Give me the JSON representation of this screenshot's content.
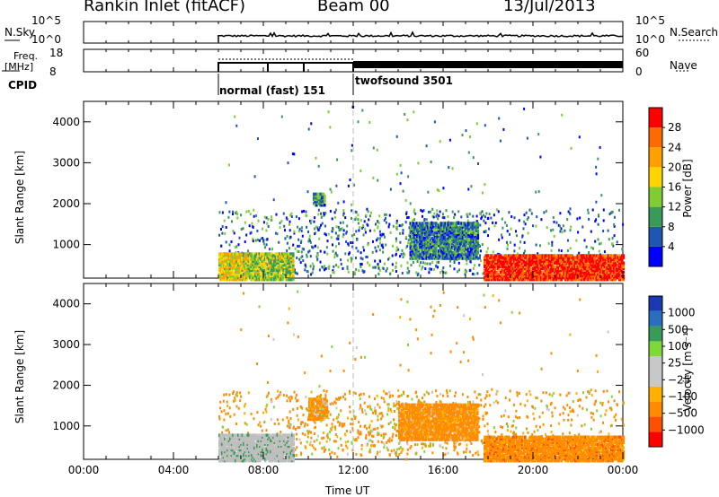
{
  "header": {
    "station": "Rankin Inlet (fitACF)",
    "beam": "Beam 00",
    "date": "13/Jul/2013"
  },
  "panels": {
    "nsky": {
      "label": "N.Sky",
      "tick_top": "10^5",
      "tick_bottom": "10^0",
      "right_label": "N.Search",
      "right_top": "10^5",
      "right_bottom": "10^0"
    },
    "freq": {
      "label_line1": "Freq.",
      "label_line2": "[MHz]",
      "tick_top": "18",
      "tick_bottom": "8",
      "right_label": "Nave",
      "right_top": "60",
      "right_bottom": "0"
    },
    "cpid": {
      "label": "CPID",
      "mode1": "normal (fast) 151",
      "mode2": "twofsound 3501"
    }
  },
  "colors": {
    "power_scale": [
      "#0000ff",
      "#1f56b4",
      "#3a9a5a",
      "#7fcc33",
      "#ffd400",
      "#ffa000",
      "#ff6a00",
      "#ff0000"
    ],
    "velocity_scale": [
      "#ff0000",
      "#ff5000",
      "#ff8c00",
      "#ffb000",
      "#c8c8c8",
      "#c8c8c8",
      "#7fd83a",
      "#3a9a5a",
      "#2a6ec0",
      "#1a3ab4"
    ],
    "ground_scatter": "#bebebe"
  },
  "power_colorbar": {
    "label": "Power [dB]",
    "ticks": [
      "28",
      "24",
      "20",
      "16",
      "12",
      "8",
      "4"
    ]
  },
  "velocity_colorbar": {
    "label": "Velocity [m s⁻¹]",
    "ticks": [
      "1000",
      "500",
      "100",
      "25",
      "−25",
      "−100",
      "−500",
      "−1000"
    ]
  },
  "chart_data": [
    {
      "type": "heatmap",
      "name": "power",
      "ylabel": "Slant Range [km]",
      "xlabel": "",
      "x_ticks": [
        "00:00",
        "04:00",
        "08:00",
        "12:00",
        "16:00",
        "20:00",
        "00:00"
      ],
      "y_ticks": [
        "1000",
        "2000",
        "3000",
        "4000"
      ],
      "xlim_hours": [
        0,
        24
      ],
      "ylim_km": [
        180,
        4500
      ],
      "data_start_hour": 6,
      "regions": [
        {
          "t0": 6.0,
          "t1": 7.3,
          "r0": 180,
          "r1": 850,
          "level": 0.55
        },
        {
          "t0": 7.3,
          "t1": 9.3,
          "r0": 180,
          "r1": 850,
          "level": 0.45
        },
        {
          "t0": 17.8,
          "t1": 24,
          "r0": 180,
          "r1": 800,
          "level": 0.92
        },
        {
          "t0": 14.5,
          "t1": 17.5,
          "r0": 700,
          "r1": 1600,
          "level": 0.25
        },
        {
          "t0": 10.2,
          "t1": 10.7,
          "r0": 2000,
          "r1": 2300,
          "level": 0.3
        }
      ]
    },
    {
      "type": "heatmap",
      "name": "velocity",
      "ylabel": "Slant Range [km]",
      "xlabel": "Time UT",
      "x_ticks": [
        "00:00",
        "04:00",
        "08:00",
        "12:00",
        "16:00",
        "20:00",
        "00:00"
      ],
      "y_ticks": [
        "1000",
        "2000",
        "3000",
        "4000"
      ],
      "xlim_hours": [
        0,
        24
      ],
      "ylim_km": [
        180,
        4500
      ],
      "data_start_hour": 6,
      "regions": [
        {
          "t0": 6.0,
          "t1": 9.3,
          "r0": 180,
          "r1": 850,
          "level": "ground"
        },
        {
          "t0": 14.0,
          "t1": 17.5,
          "r0": 700,
          "r1": 1600,
          "level": -250
        },
        {
          "t0": 17.8,
          "t1": 24,
          "r0": 180,
          "r1": 800,
          "level": -300
        },
        {
          "t0": 10.0,
          "t1": 10.8,
          "r0": 1200,
          "r1": 1700,
          "level": -200
        }
      ]
    }
  ]
}
